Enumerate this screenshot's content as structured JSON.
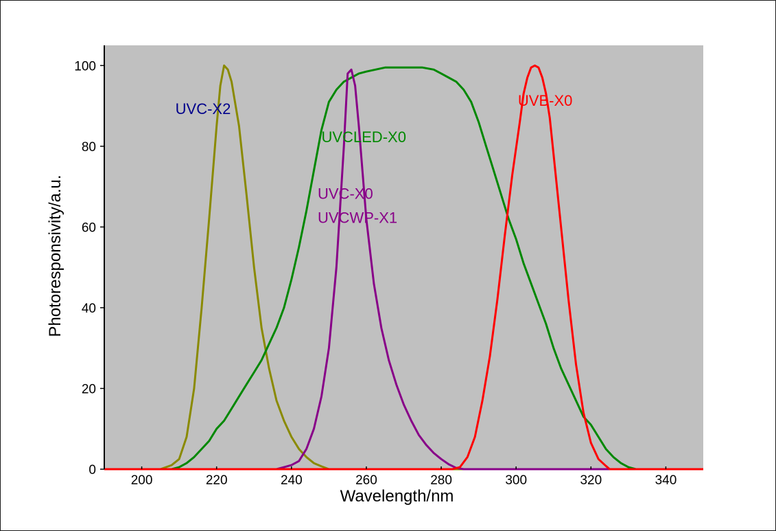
{
  "chart_data": {
    "type": "line",
    "title": "",
    "xlabel": "Wavelength/nm",
    "ylabel": "Photoresponsivity/a.u.",
    "xlim": [
      190,
      350
    ],
    "ylim": [
      0,
      105
    ],
    "x_ticks": [
      200,
      220,
      240,
      260,
      280,
      300,
      320,
      340
    ],
    "y_ticks": [
      0,
      20,
      40,
      60,
      80,
      100
    ],
    "grid": false,
    "background": "#c0c0c0",
    "series": [
      {
        "name": "UVC-X2",
        "color": "#8a8a00",
        "points": [
          [
            190,
            0
          ],
          [
            205,
            0
          ],
          [
            208,
            1
          ],
          [
            210,
            2.5
          ],
          [
            212,
            8
          ],
          [
            214,
            20
          ],
          [
            216,
            40
          ],
          [
            218,
            62
          ],
          [
            220,
            85
          ],
          [
            221,
            95
          ],
          [
            222,
            100
          ],
          [
            223,
            99
          ],
          [
            224,
            96
          ],
          [
            226,
            85
          ],
          [
            228,
            68
          ],
          [
            230,
            50
          ],
          [
            232,
            35
          ],
          [
            234,
            25
          ],
          [
            236,
            17
          ],
          [
            238,
            12
          ],
          [
            240,
            8
          ],
          [
            242,
            5
          ],
          [
            244,
            3
          ],
          [
            246,
            1.5
          ],
          [
            248,
            0.7
          ],
          [
            250,
            0
          ],
          [
            350,
            0
          ]
        ]
      },
      {
        "name": "UVCLED-X0",
        "color": "#008800",
        "points": [
          [
            190,
            0
          ],
          [
            208,
            0
          ],
          [
            210,
            0.5
          ],
          [
            212,
            1.5
          ],
          [
            214,
            3
          ],
          [
            216,
            5
          ],
          [
            218,
            7
          ],
          [
            220,
            10
          ],
          [
            222,
            12
          ],
          [
            224,
            15
          ],
          [
            226,
            18
          ],
          [
            228,
            21
          ],
          [
            230,
            24
          ],
          [
            232,
            27
          ],
          [
            234,
            31
          ],
          [
            236,
            35
          ],
          [
            238,
            40
          ],
          [
            240,
            47
          ],
          [
            242,
            55
          ],
          [
            244,
            64
          ],
          [
            246,
            74
          ],
          [
            248,
            84
          ],
          [
            250,
            91
          ],
          [
            252,
            94
          ],
          [
            254,
            96
          ],
          [
            256,
            97
          ],
          [
            258,
            98
          ],
          [
            260,
            98.5
          ],
          [
            265,
            99.5
          ],
          [
            270,
            99.5
          ],
          [
            275,
            99.5
          ],
          [
            278,
            99
          ],
          [
            280,
            98
          ],
          [
            282,
            97
          ],
          [
            284,
            96
          ],
          [
            286,
            94
          ],
          [
            288,
            91
          ],
          [
            290,
            86
          ],
          [
            292,
            80
          ],
          [
            294,
            74
          ],
          [
            296,
            68
          ],
          [
            298,
            62
          ],
          [
            300,
            57
          ],
          [
            302,
            51
          ],
          [
            304,
            46
          ],
          [
            306,
            41
          ],
          [
            308,
            36
          ],
          [
            310,
            30
          ],
          [
            312,
            25
          ],
          [
            314,
            21
          ],
          [
            316,
            17
          ],
          [
            318,
            13
          ],
          [
            320,
            11
          ],
          [
            322,
            8
          ],
          [
            324,
            5
          ],
          [
            326,
            3
          ],
          [
            328,
            1.5
          ],
          [
            330,
            0.5
          ],
          [
            332,
            0
          ],
          [
            350,
            0
          ]
        ]
      },
      {
        "name": "UVC-X0",
        "color": "#880088",
        "points": [
          [
            190,
            0
          ],
          [
            236,
            0
          ],
          [
            238,
            0.5
          ],
          [
            240,
            1
          ],
          [
            242,
            2
          ],
          [
            244,
            5
          ],
          [
            246,
            10
          ],
          [
            248,
            18
          ],
          [
            250,
            30
          ],
          [
            252,
            50
          ],
          [
            254,
            80
          ],
          [
            255,
            98
          ],
          [
            256,
            99
          ],
          [
            257,
            95
          ],
          [
            258,
            85
          ],
          [
            260,
            62
          ],
          [
            262,
            46
          ],
          [
            264,
            35
          ],
          [
            266,
            27
          ],
          [
            268,
            21
          ],
          [
            270,
            16
          ],
          [
            272,
            12
          ],
          [
            274,
            8.5
          ],
          [
            276,
            6
          ],
          [
            278,
            4
          ],
          [
            280,
            2.5
          ],
          [
            282,
            1.2
          ],
          [
            284,
            0.3
          ],
          [
            286,
            0
          ],
          [
            350,
            0
          ]
        ]
      },
      {
        "name": "UVCWP-X1",
        "color": "#880088",
        "points": []
      },
      {
        "name": "UVB-X0",
        "color": "#ff0000",
        "points": [
          [
            190,
            0
          ],
          [
            283,
            0
          ],
          [
            285,
            0.5
          ],
          [
            287,
            3
          ],
          [
            289,
            8
          ],
          [
            291,
            17
          ],
          [
            293,
            28
          ],
          [
            295,
            42
          ],
          [
            297,
            58
          ],
          [
            299,
            73
          ],
          [
            301,
            86
          ],
          [
            302,
            93
          ],
          [
            303,
            97
          ],
          [
            304,
            99.5
          ],
          [
            305,
            100
          ],
          [
            306,
            99.5
          ],
          [
            307,
            97
          ],
          [
            308,
            93
          ],
          [
            309,
            87
          ],
          [
            310,
            78
          ],
          [
            312,
            60
          ],
          [
            314,
            42
          ],
          [
            316,
            26
          ],
          [
            318,
            14
          ],
          [
            320,
            6.5
          ],
          [
            322,
            2.5
          ],
          [
            324,
            0.8
          ],
          [
            325,
            0
          ],
          [
            350,
            0
          ]
        ]
      }
    ],
    "annotations": [
      {
        "text": "UVC-X2",
        "color": "#00008b"
      },
      {
        "text": "UVCLED-X0",
        "color": "#008800"
      },
      {
        "text": "UVC-X0",
        "color": "#880088"
      },
      {
        "text": "UVCWP-X1",
        "color": "#880088"
      },
      {
        "text": "UVB-X0",
        "color": "#ff0000"
      }
    ]
  }
}
